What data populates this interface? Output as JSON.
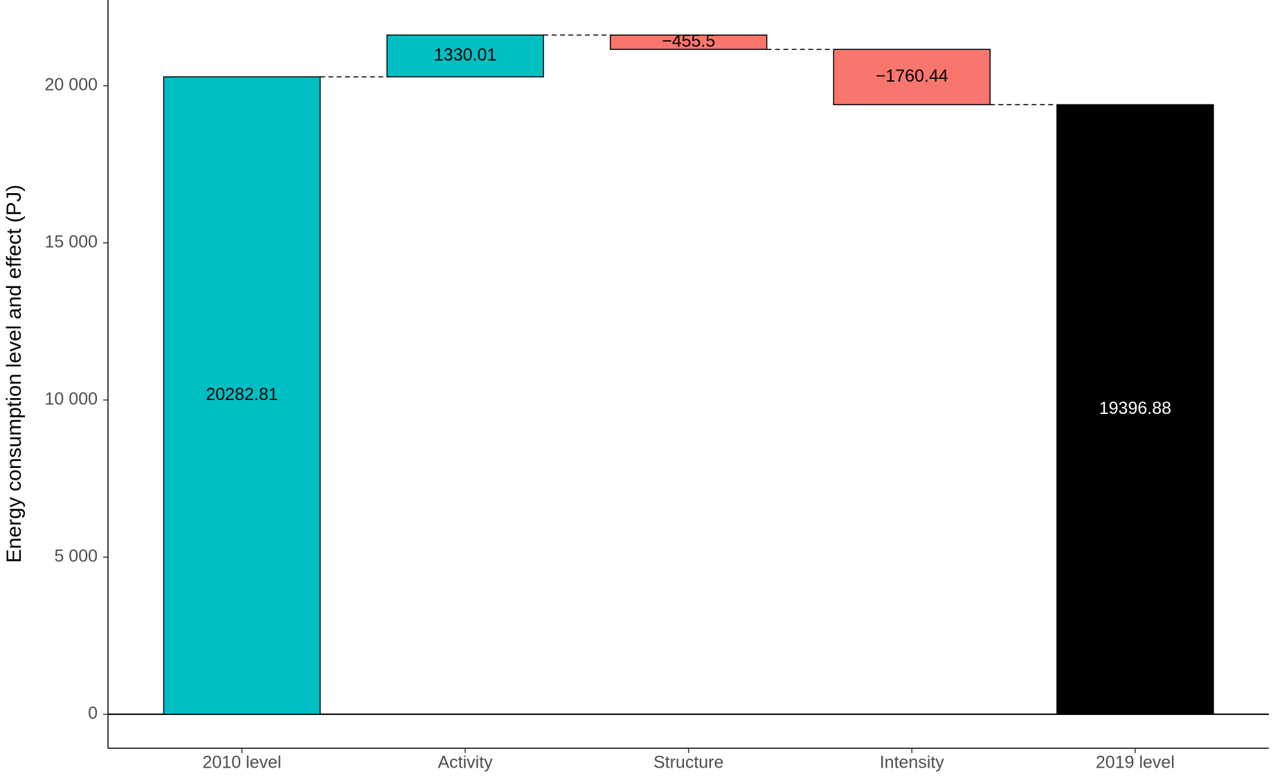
{
  "chart_data": {
    "type": "waterfall",
    "y_label": "Energy consumption level and effect (PJ)",
    "categories": [
      "2010 level",
      "Activity",
      "Structure",
      "Intensity",
      "2019 level"
    ],
    "values": [
      20282.81,
      1330.01,
      -455.5,
      -1760.44,
      19396.88
    ],
    "value_labels": [
      "20282.81",
      "1330.01",
      "−455.5",
      "−1760.44",
      "19396.88"
    ],
    "colors": [
      "#00bfc4",
      "#00bfc4",
      "#f8766d",
      "#f8766d",
      "#000000"
    ],
    "ylim": [
      -1081,
      22728
    ],
    "yticks": [
      0,
      {
        "value": 5000,
        "label": "5 000"
      },
      {
        "value": 10000,
        "label": "10 000"
      },
      {
        "value": 15000,
        "label": "15 000"
      },
      {
        "value": 20000,
        "label": "20 000"
      }
    ]
  }
}
